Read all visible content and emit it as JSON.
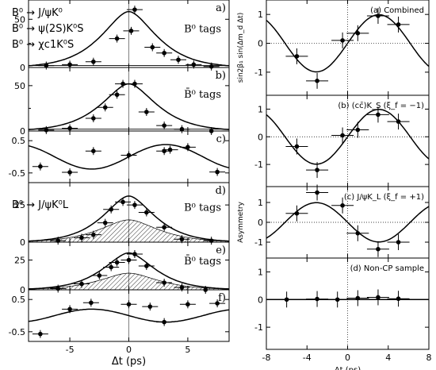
{
  "figure": {
    "legend_lines": [
      "B⁰ → J/ψK⁰",
      "B⁰ → ψ(2S)K⁰S",
      "B⁰ → χc1K⁰S"
    ],
    "legend_lines_klong": [
      "B⁰ → J/ψK⁰L"
    ]
  },
  "chart_data": [
    {
      "type": "scatter",
      "panel": "left-a",
      "corner_label": "a)",
      "inner_label": "B⁰ tags",
      "xlim": [
        -8.5,
        8.5
      ],
      "ylim": [
        0,
        70
      ],
      "yticks": [
        0,
        50
      ],
      "yminor": [
        25
      ],
      "points": [
        [
          -7,
          2
        ],
        [
          -5,
          3
        ],
        [
          -3,
          6
        ],
        [
          -1,
          30
        ],
        [
          0.2,
          38
        ],
        [
          0.5,
          60
        ],
        [
          2,
          21
        ],
        [
          3,
          15
        ],
        [
          4.2,
          8
        ],
        [
          5.5,
          3
        ],
        [
          7,
          1
        ]
      ],
      "curves": [
        {
          "name": "fit",
          "kind": "peak",
          "params": {
            "mu": 0,
            "amp": 58,
            "tau": 1.6,
            "base": 0
          }
        },
        {
          "name": "background",
          "kind": "flat",
          "params": {
            "level": 2
          }
        }
      ]
    },
    {
      "type": "scatter",
      "panel": "left-b",
      "corner_label": "b)",
      "inner_label": "B̄⁰ tags",
      "xlim": [
        -8.5,
        8.5
      ],
      "ylim": [
        0,
        70
      ],
      "yticks": [
        0,
        50
      ],
      "yminor": [
        25
      ],
      "points": [
        [
          -7,
          1
        ],
        [
          -5,
          3
        ],
        [
          -3,
          14
        ],
        [
          -2,
          26
        ],
        [
          -1,
          40
        ],
        [
          -0.5,
          52
        ],
        [
          0.5,
          52
        ],
        [
          1.5,
          21
        ],
        [
          3,
          6
        ],
        [
          4.5,
          2
        ],
        [
          7,
          0
        ]
      ],
      "curves": [
        {
          "name": "fit",
          "kind": "peak",
          "params": {
            "mu": 0,
            "amp": 52,
            "tau": 1.6,
            "base": 0
          }
        },
        {
          "name": "background",
          "kind": "flat",
          "params": {
            "level": 2
          }
        }
      ]
    },
    {
      "type": "scatter",
      "panel": "left-c",
      "corner_label": "c)",
      "xlim": [
        -8.5,
        8.5
      ],
      "ylim": [
        -0.8,
        0.8
      ],
      "yticks": [
        -0.5,
        0.5
      ],
      "points": [
        [
          -7.5,
          -0.3
        ],
        [
          -5,
          -0.48
        ],
        [
          -3,
          0.18
        ],
        [
          0,
          0.05
        ],
        [
          3,
          0.18
        ],
        [
          3.5,
          0.22
        ],
        [
          5,
          0.3
        ],
        [
          7.5,
          -0.47
        ]
      ],
      "curves": [
        {
          "name": "fit",
          "kind": "sine",
          "params": {
            "amp": 0.38,
            "omega": 0.5,
            "base": 0
          }
        }
      ]
    },
    {
      "type": "scatter",
      "panel": "left-d",
      "corner_label": "d)",
      "inner_label": "B⁰ tags",
      "xlim": [
        -8.5,
        8.5
      ],
      "ylim": [
        0,
        40
      ],
      "yticks": [
        0,
        25
      ],
      "points": [
        [
          -6,
          1
        ],
        [
          -4,
          3
        ],
        [
          -3,
          5
        ],
        [
          -2,
          13
        ],
        [
          -1.5,
          22
        ],
        [
          -0.5,
          27
        ],
        [
          0.5,
          25
        ],
        [
          1.5,
          20
        ],
        [
          3,
          10
        ],
        [
          4.5,
          2
        ],
        [
          7,
          1
        ]
      ],
      "curves": [
        {
          "name": "fit",
          "kind": "peak",
          "params": {
            "mu": 0,
            "amp": 31,
            "tau": 1.5,
            "base": 0
          }
        },
        {
          "name": "background",
          "kind": "shaded-peak",
          "params": {
            "mu": 0,
            "amp": 15,
            "tau": 1.7
          }
        }
      ]
    },
    {
      "type": "scatter",
      "panel": "left-e",
      "corner_label": "e)",
      "inner_label": "B̄⁰ tags",
      "xlim": [
        -8.5,
        8.5
      ],
      "ylim": [
        0,
        40
      ],
      "yticks": [
        0,
        25
      ],
      "points": [
        [
          -6,
          1
        ],
        [
          -4,
          5
        ],
        [
          -2.5,
          12
        ],
        [
          -1.5,
          19
        ],
        [
          -1,
          23
        ],
        [
          0,
          25
        ],
        [
          0.5,
          30
        ],
        [
          1.5,
          20
        ],
        [
          3,
          6
        ],
        [
          4.5,
          2
        ],
        [
          6.5,
          0
        ]
      ],
      "curves": [
        {
          "name": "fit",
          "kind": "peak",
          "params": {
            "mu": 0,
            "amp": 31,
            "tau": 1.5,
            "base": 0
          }
        },
        {
          "name": "background",
          "kind": "shaded-peak",
          "params": {
            "mu": 0,
            "amp": 14,
            "tau": 1.7
          }
        }
      ]
    },
    {
      "type": "scatter",
      "panel": "left-f",
      "corner_label": "f)",
      "xlabel": "Δt (ps)",
      "xlim": [
        -8.5,
        8.5
      ],
      "ylim": [
        -0.8,
        0.8
      ],
      "yticks": [
        -0.5,
        0.5
      ],
      "xticks": [
        -5,
        0,
        5
      ],
      "points": [
        [
          -7.5,
          -0.57
        ],
        [
          -5,
          0.2
        ],
        [
          -3.2,
          0.4
        ],
        [
          0,
          0.35
        ],
        [
          1.8,
          0.28
        ],
        [
          3,
          -0.2
        ],
        [
          5,
          0.35
        ],
        [
          7.5,
          0.38
        ]
      ],
      "curves": [
        {
          "name": "fit",
          "kind": "sine",
          "params": {
            "amp": -0.2,
            "omega": 0.5,
            "base": 0
          }
        }
      ]
    },
    {
      "type": "scatter",
      "panel": "right-a",
      "title": "(a) Combined",
      "ylabel": "sin2β₁ sin(Δm_d Δt)",
      "xlim": [
        -8,
        8
      ],
      "ylim": [
        -1.8,
        1.5
      ],
      "yticks": [
        -1,
        0,
        1
      ],
      "points": [
        [
          -5,
          -0.45
        ],
        [
          -3,
          -1.3
        ],
        [
          -0.5,
          0.1
        ],
        [
          1,
          0.35
        ],
        [
          3,
          0.95
        ],
        [
          5,
          0.65
        ]
      ],
      "curves": [
        {
          "name": "fit",
          "kind": "sine",
          "params": {
            "amp": 0.99,
            "omega": 0.51,
            "base": 0
          }
        }
      ]
    },
    {
      "type": "scatter",
      "panel": "right-b",
      "title": "(b) (cc̄)K_S (ξ_f = −1)",
      "xlim": [
        -8,
        8
      ],
      "ylim": [
        -1.8,
        1.5
      ],
      "yticks": [
        -1,
        0,
        1
      ],
      "points": [
        [
          -5,
          -0.35
        ],
        [
          -3,
          -1.2
        ],
        [
          -0.5,
          0.05
        ],
        [
          1,
          0.25
        ],
        [
          3,
          0.8
        ],
        [
          5,
          0.55
        ]
      ],
      "curves": [
        {
          "name": "fit",
          "kind": "sine",
          "params": {
            "amp": 0.99,
            "omega": 0.51,
            "base": 0
          }
        }
      ]
    },
    {
      "type": "scatter",
      "panel": "right-c",
      "title": "(c) J/ψK_L (ξ_f = +1)",
      "ylabel": "Asymmetry",
      "xlim": [
        -8,
        8
      ],
      "ylim": [
        -1.8,
        1.8
      ],
      "yticks": [
        -1,
        0,
        1
      ],
      "points": [
        [
          -5,
          0.45
        ],
        [
          -3,
          1.5
        ],
        [
          -0.5,
          0.85
        ],
        [
          1,
          -0.55
        ],
        [
          3,
          -1.35
        ],
        [
          5,
          -1.0
        ]
      ],
      "curves": [
        {
          "name": "fit",
          "kind": "sine",
          "params": {
            "amp": -0.99,
            "omega": 0.51,
            "base": 0
          }
        }
      ]
    },
    {
      "type": "scatter",
      "panel": "right-d",
      "title": "(d) Non-CP sample",
      "xlabel": "Δt (ps)",
      "xlim": [
        -8,
        8
      ],
      "ylim": [
        -1.8,
        1.5
      ],
      "yticks": [
        -1,
        0,
        1
      ],
      "xticks": [
        -8,
        -4,
        0,
        4,
        8
      ],
      "points": [
        [
          -6,
          0
        ],
        [
          -3,
          0.02
        ],
        [
          -1,
          0.0
        ],
        [
          1,
          0.05
        ],
        [
          3,
          0.08
        ],
        [
          5,
          0.03
        ]
      ],
      "curves": [
        {
          "name": "fit",
          "kind": "flat",
          "params": {
            "level": 0
          }
        }
      ]
    }
  ]
}
